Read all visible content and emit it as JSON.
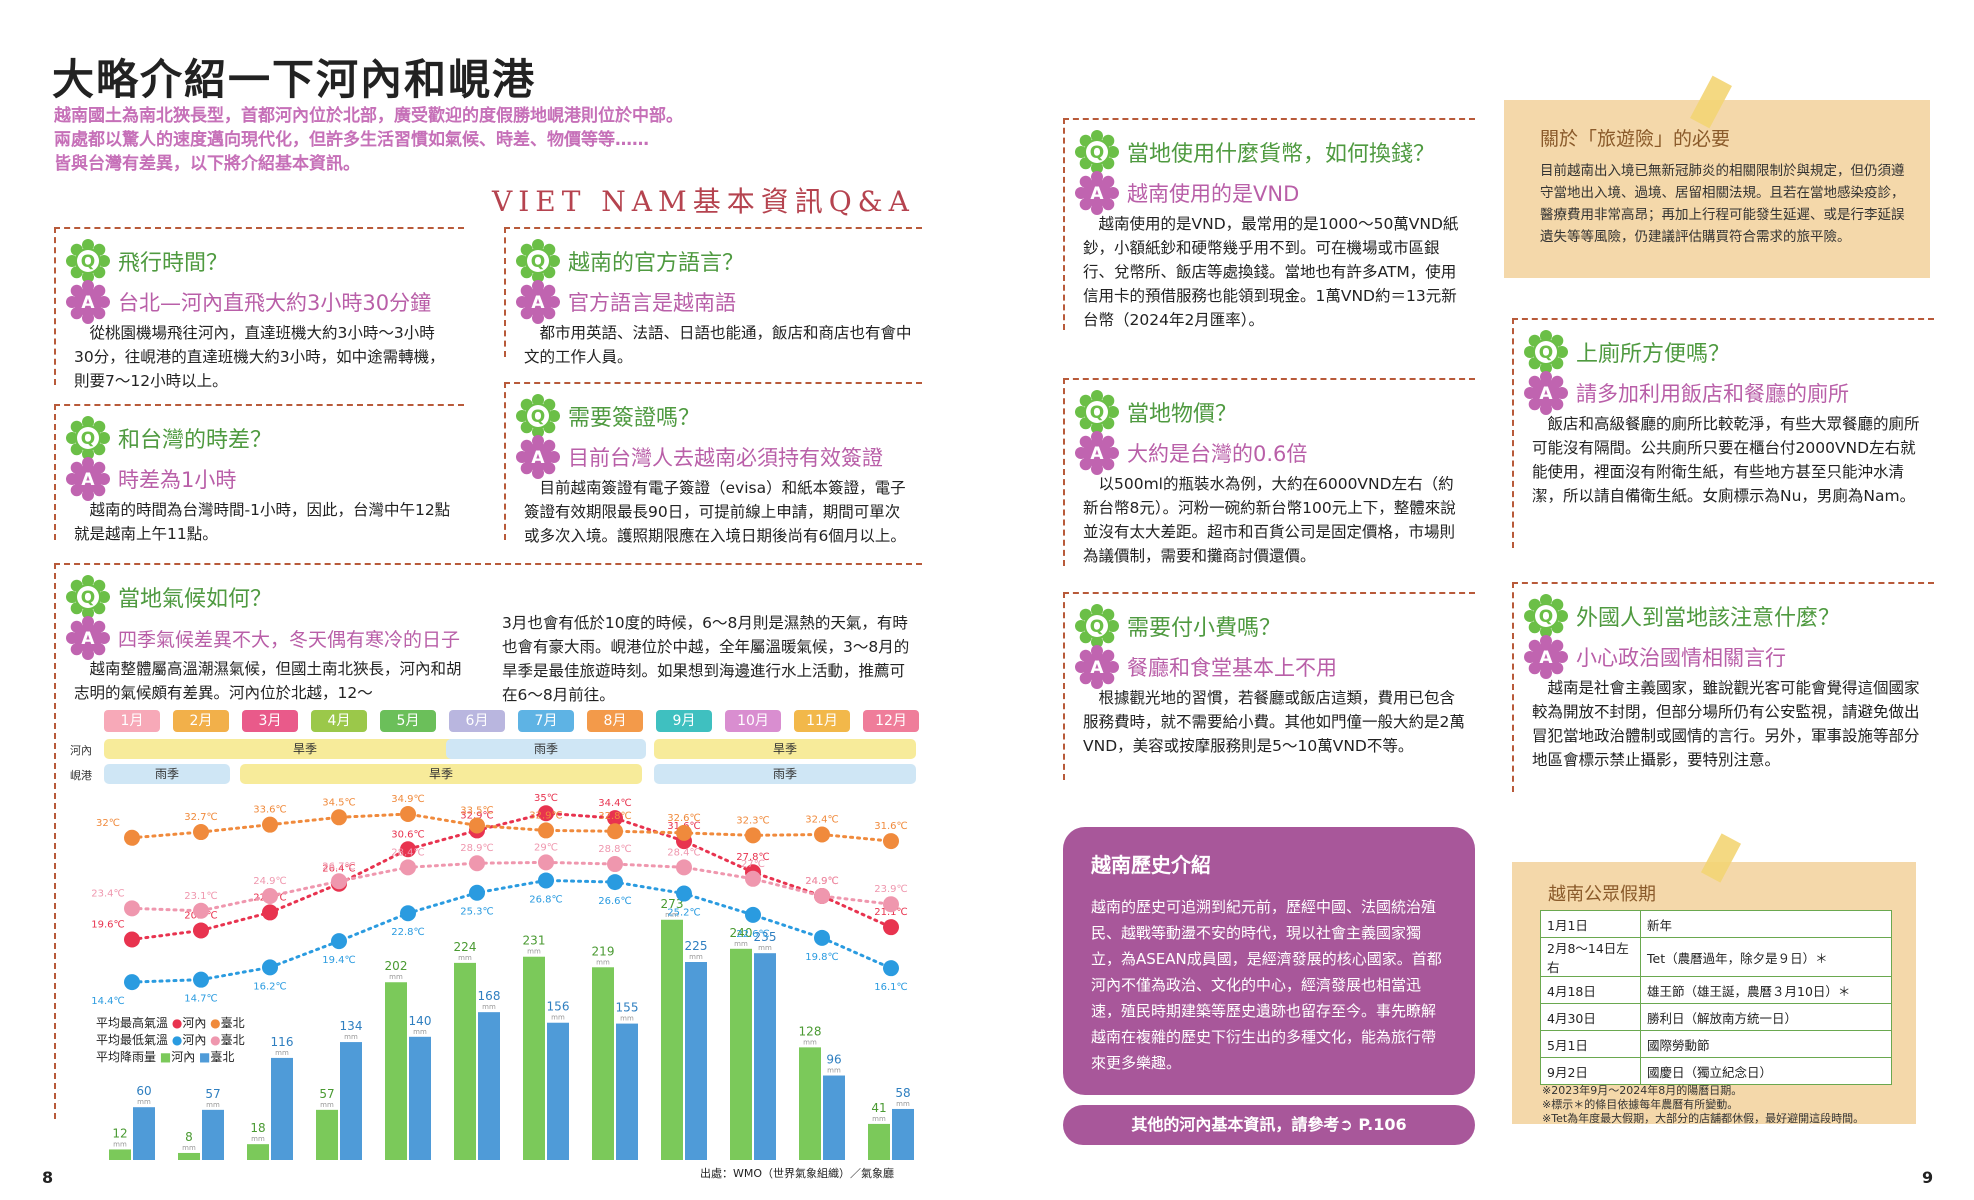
{
  "title": "大略介紹一下河內和峴港",
  "intro": [
    "越南國土為南北狹長型，首都河內位於北部，廣受歡迎的度假勝地峴港則位於中部。",
    "兩處都以驚人的速度邁向現代化，但許多生活習慣如氣候、時差、物價等等……",
    "皆與台灣有差異，以下將介紹基本資訊。"
  ],
  "section_title": "VIET NAM基本資訊Q&A",
  "badge": {
    "q": "Q",
    "a": "A"
  },
  "qa": [
    {
      "q": "飛行時間？",
      "a": "台北—河內直飛大約3小時30分鐘",
      "body": "從桃園機場飛往河內，直達班機大約3小時～3小時30分，往峴港的直達班機大約3小時，如中途需轉機，則要7～12小時以上。"
    },
    {
      "q": "越南的官方語言？",
      "a": "官方語言是越南語",
      "body": "都市用英語、法語、日語也能通，飯店和商店也有會中文的工作人員。"
    },
    {
      "q": "和台灣的時差？",
      "a": "時差為1小時",
      "body": "越南的時間為台灣時間-1小時，因此，台灣中午12點就是越南上午11點。"
    },
    {
      "q": "需要簽證嗎？",
      "a": "目前台灣人去越南必須持有效簽證",
      "body": "目前越南簽證有電子簽證（evisa）和紙本簽證，電子簽證有效期限最長90日，可提前線上申請，期間可單次或多次入境。護照期限應在入境日期後尚有6個月以上。"
    },
    {
      "q": "當地氣候如何？",
      "a": "四季氣候差異不大，冬天偶有寒冷的日子",
      "body": "越南整體屬高溫潮濕氣候，但國土南北狹長，河內和胡志明的氣候頗有差異。河內位於北越，12～",
      "body2": "3月也會有低於10度的時候，6～8月則是濕熱的天氣，有時也會有豪大雨。峴港位於中越，全年屬溫暖氣候，3～8月的旱季是最佳旅遊時刻。如果想到海邊進行水上活動，推薦可在6～8月前往。"
    },
    {
      "q": "當地使用什麼貨幣，如何換錢？",
      "a": "越南使用的是VND",
      "body": "越南使用的是VND，最常用的是1000～50萬VND紙鈔，小額紙鈔和硬幣幾乎用不到。可在機場或市區銀行、兌幣所、飯店等處換錢。當地也有許多ATM，使用信用卡的預借服務也能領到現金。1萬VND約＝13元新台幣（2024年2月匯率）。"
    },
    {
      "q": "當地物價？",
      "a": "大約是台灣的0.6倍",
      "body": "以500ml的瓶裝水為例，大約在6000VND左右（約新台幣8元）。河粉一碗約新台幣100元上下，整體來說並沒有太大差距。超市和百貨公司是固定價格，市場則為議價制，需要和攤商討價還價。"
    },
    {
      "q": "需要付小費嗎？",
      "a": "餐廳和食堂基本上不用",
      "body": "根據觀光地的習慣，若餐廳或飯店這類，費用已包含服務費時，就不需要給小費。其他如門僮一般大約是2萬VND，美容或按摩服務則是5～10萬VND不等。"
    },
    {
      "q": "上廁所方便嗎？",
      "a": "請多加利用飯店和餐廳的廁所",
      "body": "飯店和高級餐廳的廁所比較乾淨，有些大眾餐廳的廁所可能沒有隔間。公共廁所只要在櫃台付2000VND左右就能使用，裡面沒有附衛生紙，有些地方甚至只能沖水清潔，所以請自備衛生紙。女廁標示為Nu，男廁為Nam。"
    },
    {
      "q": "外國人到當地該注意什麼？",
      "a": "小心政治國情相關言行",
      "body": "越南是社會主義國家，雖說觀光客可能會覺得這個國家較為開放不封閉，但部分場所仍有公安監視，請避免做出冒犯當地政治體制或國情的言行。另外，軍事設施等部分地區會標示禁止攝影，要特別注意。"
    }
  ],
  "months": [
    "1月",
    "2月",
    "3月",
    "4月",
    "5月",
    "6月",
    "7月",
    "8月",
    "9月",
    "10月",
    "11月",
    "12月"
  ],
  "month_colors": [
    "#f7a9b8",
    "#f2b04a",
    "#e95a8a",
    "#9bc84a",
    "#6bbf5a",
    "#b9b6df",
    "#5eb3e4",
    "#f39a4a",
    "#3fc0c0",
    "#d98ed0",
    "#f2b84a",
    "#ef7d9a"
  ],
  "season_rows": {
    "hanoi": "河內",
    "danang": "峴港"
  },
  "seasons": {
    "dry": "旱季",
    "rain": "雨季"
  },
  "chart_data": {
    "type": "line",
    "categories": [
      "1月",
      "2月",
      "3月",
      "4月",
      "5月",
      "6月",
      "7月",
      "8月",
      "9月",
      "10月",
      "11月",
      "12月"
    ],
    "series": [
      {
        "name": "平均最高氣溫 河內",
        "color": "#e8334f",
        "values": [
          19.6,
          20.7,
          22.9,
          26.4,
          30.6,
          32.9,
          35,
          34.4,
          31.6,
          27.8,
          24.9,
          21.1
        ]
      },
      {
        "name": "平均最高氣溫 臺北",
        "color": "#f08a3c",
        "values": [
          32.0,
          32.7,
          33.6,
          34.5,
          34.9,
          33.5,
          32.9,
          32.8,
          32.6,
          32.3,
          32.4,
          31.6
        ]
      },
      {
        "name": "平均最低氣溫 河內",
        "color": "#2a9be0",
        "values": [
          14.4,
          14.7,
          16.2,
          19.4,
          22.8,
          25.3,
          26.8,
          26.6,
          25.2,
          22.6,
          19.8,
          16.1
        ]
      },
      {
        "name": "平均最低氣溫 臺北",
        "color": "#ef97ae",
        "values": [
          23.4,
          23.1,
          24.9,
          26.7,
          28.4,
          28.9,
          29.0,
          28.8,
          28.4,
          27.0,
          24.9,
          23.9
        ]
      }
    ],
    "bars": [
      {
        "name": "平均降雨量 河內",
        "color": "#7bc95a",
        "values": [
          12,
          8,
          18,
          57,
          202,
          224,
          231,
          219,
          273,
          240,
          128,
          41
        ]
      },
      {
        "name": "平均降雨量 臺北",
        "color": "#4f9bd8",
        "values": [
          60,
          57,
          116,
          134,
          140,
          168,
          156,
          155,
          225,
          235,
          96,
          58
        ]
      }
    ]
  },
  "temp_extra_labels": [
    "20.7℃",
    "22.9℃",
    "26.4℃",
    "30.6℃",
    "33.5℃",
    "32.9℃",
    "27.8℃",
    "24.9℃",
    "32.5℃",
    "25.2℃",
    "26.4℃",
    "26.4℃",
    "25.1℃"
  ],
  "rain_unit": "mm",
  "legend": [
    {
      "label": "平均最高氣溫",
      "a": "河內",
      "b": "臺北"
    },
    {
      "label": "平均最低氣溫",
      "a": "河內",
      "b": "臺北"
    },
    {
      "label": "平均降雨量",
      "a": "河內",
      "b": "臺北"
    }
  ],
  "source": "出處：WMO（世界氣象組織）／氣象廳",
  "page_left": "8",
  "page_right": "9",
  "insurance": {
    "title": "關於「旅遊險」的必要",
    "body": "目前越南出入境已無新冠肺炎的相關限制於與規定，但仍須遵守當地出入境、過境、居留相關法規。且若在當地感染疫診，醫療費用非常高昂；再加上行程可能發生延遲、或是行李延誤遺失等等風險，仍建議評估購買符合需求的旅平險。"
  },
  "history": {
    "title": "越南歷史介紹",
    "body": "越南的歷史可追溯到紀元前，歷經中國、法國統治殖民、越戰等動盪不安的時代，現以社會主義國家獨立，為ASEAN成員國，是經濟發展的核心國家。首都河內不僅為政治、文化的中心，經濟發展也相當迅速，殖民時期建築等歷史遺跡也留存至今。事先瞭解越南在複雜的歷史下衍生出的多種文化，能為旅行帶來更多樂趣。"
  },
  "reference": "其他的河內基本資訊，請參考➲ P.106",
  "holidays": {
    "title": "越南公眾假期",
    "rows": [
      {
        "date": "1月1日",
        "name": "新年"
      },
      {
        "date": "2月8～14日左右",
        "name": "Tet（農曆過年，除夕是９日）＊"
      },
      {
        "date": "4月18日",
        "name": "雄王節（雄王誕，農曆３月10日）＊"
      },
      {
        "date": "4月30日",
        "name": "勝利日（解放南方統一日）"
      },
      {
        "date": "5月1日",
        "name": "國際勞動節"
      },
      {
        "date": "9月2日",
        "name": "國慶日（獨立紀念日）"
      }
    ],
    "notes": [
      "※2023年9月～2024年8月的陽曆日期。",
      "※標示＊的條目依據每年農曆有所變動。",
      "※Tet為年度最大假期，大部分的店舖都休假，最好避開這段時間。"
    ]
  }
}
